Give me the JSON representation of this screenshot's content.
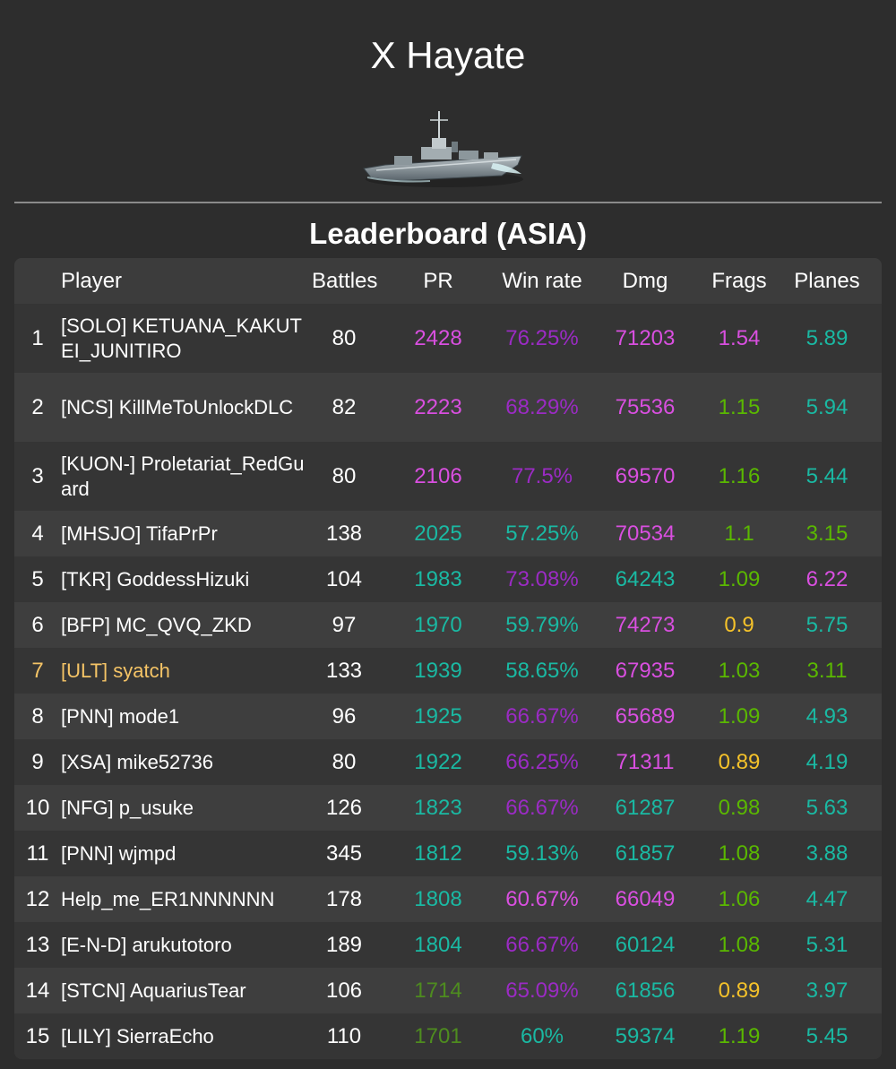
{
  "header": {
    "title": "X Hayate",
    "ship_icon": "destroyer-ship-icon"
  },
  "leaderboard": {
    "title": "Leaderboard (ASIA)",
    "columns": {
      "rank": "",
      "player": "Player",
      "battles": "Battles",
      "pr": "PR",
      "winrate": "Win rate",
      "dmg": "Dmg",
      "frags": "Frags",
      "planes": "Planes"
    },
    "colors": {
      "purple": "#d94fe0",
      "violet": "#9b2bc4",
      "teal": "#1ab9a3",
      "lime": "#5ab800",
      "olive": "#4e8c1f",
      "yellow": "#f5c22a",
      "white": "#ffffff",
      "highlight": "#f5c466"
    },
    "rows": [
      {
        "rank": "1",
        "player": "[SOLO] KETUANA_KAKUTEI_JUNITIRO",
        "battles": "80",
        "pr": "2428",
        "pr_c": "purple",
        "winrate": "76.25%",
        "winrate_c": "violet",
        "dmg": "71203",
        "dmg_c": "purple",
        "frags": "1.54",
        "frags_c": "purple",
        "planes": "5.89",
        "planes_c": "teal"
      },
      {
        "rank": "2",
        "player": "[NCS] KillMeToUnlockDLC",
        "battles": "82",
        "pr": "2223",
        "pr_c": "purple",
        "winrate": "68.29%",
        "winrate_c": "violet",
        "dmg": "75536",
        "dmg_c": "purple",
        "frags": "1.15",
        "frags_c": "lime",
        "planes": "5.94",
        "planes_c": "teal"
      },
      {
        "rank": "3",
        "player": "[KUON-] Proletariat_RedGuard",
        "battles": "80",
        "pr": "2106",
        "pr_c": "purple",
        "winrate": "77.5%",
        "winrate_c": "violet",
        "dmg": "69570",
        "dmg_c": "purple",
        "frags": "1.16",
        "frags_c": "lime",
        "planes": "5.44",
        "planes_c": "teal"
      },
      {
        "rank": "4",
        "player": "[MHSJO] TifaPrPr",
        "battles": "138",
        "pr": "2025",
        "pr_c": "teal",
        "winrate": "57.25%",
        "winrate_c": "teal",
        "dmg": "70534",
        "dmg_c": "purple",
        "frags": "1.1",
        "frags_c": "lime",
        "planes": "3.15",
        "planes_c": "lime"
      },
      {
        "rank": "5",
        "player": "[TKR] GoddessHizuki",
        "battles": "104",
        "pr": "1983",
        "pr_c": "teal",
        "winrate": "73.08%",
        "winrate_c": "violet",
        "dmg": "64243",
        "dmg_c": "teal",
        "frags": "1.09",
        "frags_c": "lime",
        "planes": "6.22",
        "planes_c": "purple"
      },
      {
        "rank": "6",
        "player": "[BFP] MC_QVQ_ZKD",
        "battles": "97",
        "pr": "1970",
        "pr_c": "teal",
        "winrate": "59.79%",
        "winrate_c": "teal",
        "dmg": "74273",
        "dmg_c": "purple",
        "frags": "0.9",
        "frags_c": "yellow",
        "planes": "5.75",
        "planes_c": "teal"
      },
      {
        "rank": "7",
        "player": "[ULT] syatch",
        "battles": "133",
        "pr": "1939",
        "pr_c": "teal",
        "winrate": "58.65%",
        "winrate_c": "teal",
        "dmg": "67935",
        "dmg_c": "purple",
        "frags": "1.03",
        "frags_c": "lime",
        "planes": "3.11",
        "planes_c": "lime",
        "highlight": true
      },
      {
        "rank": "8",
        "player": "[PNN] mode1",
        "battles": "96",
        "pr": "1925",
        "pr_c": "teal",
        "winrate": "66.67%",
        "winrate_c": "violet",
        "dmg": "65689",
        "dmg_c": "purple",
        "frags": "1.09",
        "frags_c": "lime",
        "planes": "4.93",
        "planes_c": "teal"
      },
      {
        "rank": "9",
        "player": "[XSA] mike52736",
        "battles": "80",
        "pr": "1922",
        "pr_c": "teal",
        "winrate": "66.25%",
        "winrate_c": "violet",
        "dmg": "71311",
        "dmg_c": "purple",
        "frags": "0.89",
        "frags_c": "yellow",
        "planes": "4.19",
        "planes_c": "teal"
      },
      {
        "rank": "10",
        "player": "[NFG] p_usuke",
        "battles": "126",
        "pr": "1823",
        "pr_c": "teal",
        "winrate": "66.67%",
        "winrate_c": "violet",
        "dmg": "61287",
        "dmg_c": "teal",
        "frags": "0.98",
        "frags_c": "lime",
        "planes": "5.63",
        "planes_c": "teal"
      },
      {
        "rank": "11",
        "player": "[PNN] wjmpd",
        "battles": "345",
        "pr": "1812",
        "pr_c": "teal",
        "winrate": "59.13%",
        "winrate_c": "teal",
        "dmg": "61857",
        "dmg_c": "teal",
        "frags": "1.08",
        "frags_c": "lime",
        "planes": "3.88",
        "planes_c": "teal"
      },
      {
        "rank": "12",
        "player": "Help_me_ER1NNNNNN",
        "battles": "178",
        "pr": "1808",
        "pr_c": "teal",
        "winrate": "60.67%",
        "winrate_c": "purple",
        "dmg": "66049",
        "dmg_c": "purple",
        "frags": "1.06",
        "frags_c": "lime",
        "planes": "4.47",
        "planes_c": "teal"
      },
      {
        "rank": "13",
        "player": "[E-N-D] arukutotoro",
        "battles": "189",
        "pr": "1804",
        "pr_c": "teal",
        "winrate": "66.67%",
        "winrate_c": "violet",
        "dmg": "60124",
        "dmg_c": "teal",
        "frags": "1.08",
        "frags_c": "lime",
        "planes": "5.31",
        "planes_c": "teal"
      },
      {
        "rank": "14",
        "player": "[STCN] AquariusTear",
        "battles": "106",
        "pr": "1714",
        "pr_c": "olive",
        "winrate": "65.09%",
        "winrate_c": "violet",
        "dmg": "61856",
        "dmg_c": "teal",
        "frags": "0.89",
        "frags_c": "yellow",
        "planes": "3.97",
        "planes_c": "teal"
      },
      {
        "rank": "15",
        "player": "[LILY] SierraEcho",
        "battles": "110",
        "pr": "1701",
        "pr_c": "olive",
        "winrate": "60%",
        "winrate_c": "teal",
        "dmg": "59374",
        "dmg_c": "teal",
        "frags": "1.19",
        "frags_c": "lime",
        "planes": "5.45",
        "planes_c": "teal"
      }
    ]
  }
}
